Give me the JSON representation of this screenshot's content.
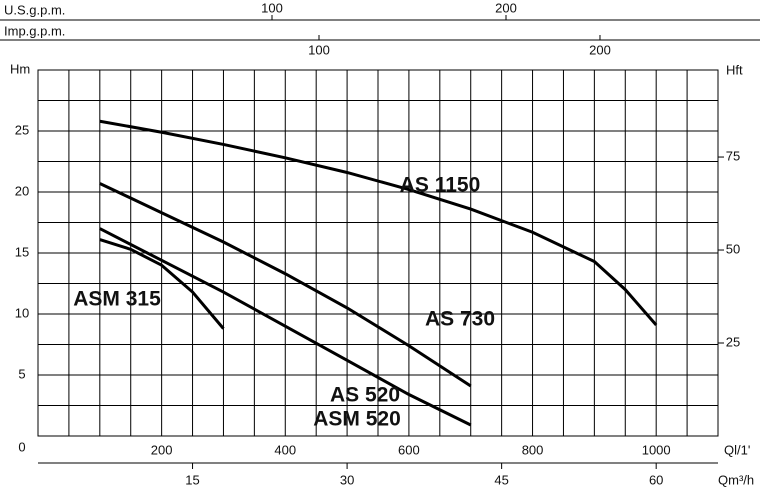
{
  "chart_data": {
    "type": "line",
    "x_label": "Ql/1'",
    "y_label": "Hm",
    "y2_label": "Hft",
    "top_axes": [
      {
        "label": "U.S.g.p.m.",
        "xlim": [
          0,
          290.6
        ],
        "xticks": [
          100,
          200
        ]
      },
      {
        "label": "Imp.g.p.m.",
        "xlim": [
          0,
          242
        ],
        "xticks": [
          100,
          200
        ]
      }
    ],
    "bottom_axis2": {
      "label": "Qm³/h",
      "xlim": [
        0,
        66
      ],
      "xticks": [
        15,
        30,
        45,
        60
      ]
    },
    "xlim": [
      0,
      1100
    ],
    "xticks": [
      200,
      400,
      600,
      800,
      1000
    ],
    "ylim": [
      0,
      30
    ],
    "yticks": [
      0,
      5,
      10,
      15,
      20,
      25
    ],
    "y2lim": [
      0,
      98.4
    ],
    "y2ticks": [
      25,
      50,
      75
    ],
    "grid": true,
    "minor_xticks": [
      0,
      50,
      100,
      150,
      200,
      250,
      300,
      350,
      400,
      450,
      500,
      550,
      600,
      650,
      700,
      750,
      800,
      850,
      900,
      950,
      1000,
      1050,
      1100
    ],
    "minor_yticks": [
      0,
      2.5,
      5,
      7.5,
      10,
      12.5,
      15,
      17.5,
      20,
      22.5,
      25,
      27.5,
      30
    ],
    "series": [
      {
        "name": "AS 1150",
        "color": "#000000",
        "x": [
          100,
          200,
          300,
          400,
          500,
          600,
          700,
          800,
          900,
          950,
          1000
        ],
        "values": [
          25.8,
          24.9,
          23.9,
          22.8,
          21.6,
          20.2,
          18.6,
          16.7,
          14.3,
          12.0,
          9.1
        ]
      },
      {
        "name": "AS 730",
        "color": "#000000",
        "x": [
          100,
          200,
          300,
          400,
          500,
          600,
          700
        ],
        "values": [
          20.7,
          18.3,
          15.9,
          13.3,
          10.5,
          7.4,
          4.1
        ]
      },
      {
        "name": "AS 520",
        "color": "#000000",
        "x": [
          100,
          200,
          300,
          400,
          500,
          600,
          700
        ],
        "values": [
          17.0,
          14.4,
          11.8,
          9.0,
          6.2,
          3.4,
          0.9
        ]
      },
      {
        "name": "ASM 315",
        "color": "#000000",
        "x": [
          100,
          150,
          200,
          250,
          300
        ],
        "values": [
          16.1,
          15.3,
          14.0,
          11.8,
          8.8
        ]
      }
    ],
    "annotations": [
      "ASM 520"
    ]
  }
}
